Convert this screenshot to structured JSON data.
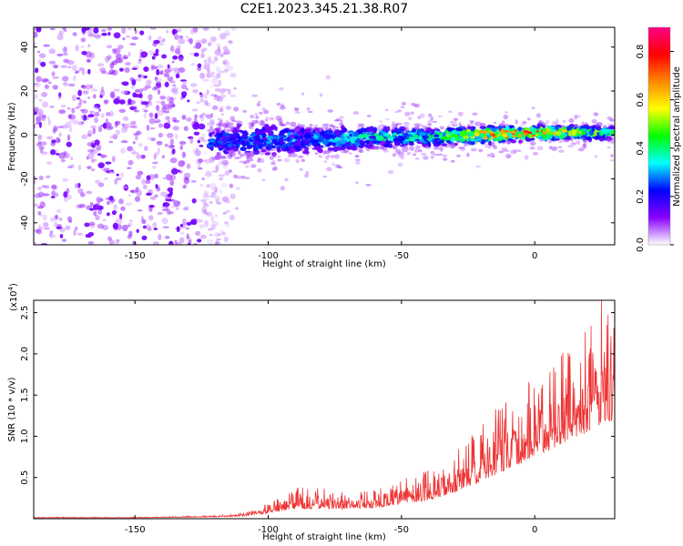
{
  "title": "C2E1.2023.345.21.38.R07",
  "chart_data": [
    {
      "type": "heatmap",
      "xlabel": "Height of straight line (km)",
      "ylabel": "Frequency (Hz)",
      "xlim": [
        -188,
        30
      ],
      "ylim": [
        -50,
        49
      ],
      "xticks": [
        -150,
        -100,
        -50,
        0
      ],
      "yticks": [
        -40,
        -20,
        0,
        20,
        40
      ],
      "grid": false,
      "colorbar": {
        "label": "Normalized spectral amplitude",
        "range": [
          0,
          0.9
        ],
        "ticks": [
          "0.0",
          "0.2",
          "0.4",
          "0.6",
          "0.8"
        ],
        "colormap": [
          "#ffffff",
          "#8800ff",
          "#0000ff",
          "#00ffff",
          "#00ff00",
          "#ffff00",
          "#ff8800",
          "#ff0000",
          "#ff0088"
        ]
      },
      "description_series": [
        {
          "name": "noise_region",
          "x_range": [
            -188,
            -125
          ],
          "freq_range": [
            -50,
            49
          ],
          "amplitude": 0.1
        },
        {
          "name": "signal_band",
          "x": [
            -120,
            -100,
            -80,
            -60,
            -40,
            -20,
            0,
            20,
            30
          ],
          "center_freq": [
            -3,
            -2,
            -2,
            -1,
            -1,
            0,
            1,
            1,
            1
          ],
          "half_width": [
            14,
            13,
            10,
            8,
            7,
            6,
            5,
            5,
            5
          ],
          "peak_amplitude": [
            0.3,
            0.35,
            0.35,
            0.45,
            0.45,
            0.8,
            0.9,
            0.6,
            0.5
          ]
        }
      ]
    },
    {
      "type": "line",
      "color": "#ee3333",
      "xlabel": "Height of straight line (km)",
      "ylabel": "SNR (10 * v/v)",
      "y_multiplier_label": "(x10",
      "y_multiplier_exponent": "4",
      "y_multiplier_close": ")",
      "xlim": [
        -188,
        30
      ],
      "ylim": [
        0,
        2.65
      ],
      "xticks": [
        -150,
        -100,
        -50,
        0
      ],
      "yticks": [
        "0.5",
        "1.0",
        "1.5",
        "2.0",
        "2.5"
      ],
      "grid": false,
      "envelope": {
        "x": [
          -188,
          -150,
          -120,
          -110,
          -100,
          -90,
          -80,
          -70,
          -60,
          -50,
          -40,
          -30,
          -20,
          -10,
          0,
          10,
          20,
          25,
          30
        ],
        "baseline": [
          0.01,
          0.01,
          0.02,
          0.03,
          0.06,
          0.12,
          0.12,
          0.12,
          0.13,
          0.18,
          0.22,
          0.32,
          0.45,
          0.6,
          0.75,
          0.9,
          1.05,
          1.15,
          1.2
        ],
        "amplitude": [
          0.01,
          0.01,
          0.02,
          0.04,
          0.12,
          0.28,
          0.25,
          0.22,
          0.25,
          0.3,
          0.38,
          0.5,
          0.7,
          0.9,
          1.0,
          1.1,
          1.3,
          1.4,
          1.3
        ]
      },
      "peak": {
        "x": 25,
        "y": 2.65
      }
    }
  ]
}
